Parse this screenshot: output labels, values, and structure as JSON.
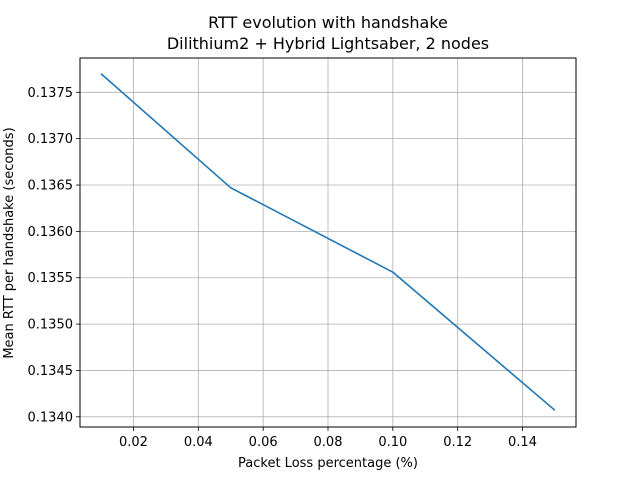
{
  "chart_data": {
    "type": "line",
    "title": "RTT evolution with handshake",
    "subtitle": "Dilithium2 + Hybrid Lightsaber, 2 nodes",
    "xlabel": "Packet Loss percentage (%)",
    "ylabel": "Mean RTT per handshake (seconds)",
    "xlim": [
      0.0035,
      0.1565
    ],
    "ylim": [
      0.13389,
      0.13787
    ],
    "xticks": [
      0.02,
      0.04,
      0.06,
      0.08,
      0.1,
      0.12,
      0.14
    ],
    "xtick_labels": [
      "0.02",
      "0.04",
      "0.06",
      "0.08",
      "0.10",
      "0.12",
      "0.14"
    ],
    "yticks": [
      0.134,
      0.1345,
      0.135,
      0.1355,
      0.136,
      0.1365,
      0.137,
      0.1375
    ],
    "ytick_labels": [
      "0.1340",
      "0.1345",
      "0.1350",
      "0.1355",
      "0.1360",
      "0.1365",
      "0.1370",
      "0.1375"
    ],
    "grid": true,
    "series": [
      {
        "color": "#1f77b4",
        "x": [
          0.01,
          0.05,
          0.1,
          0.15
        ],
        "y": [
          0.1377,
          0.13647,
          0.13556,
          0.13407
        ]
      }
    ]
  }
}
